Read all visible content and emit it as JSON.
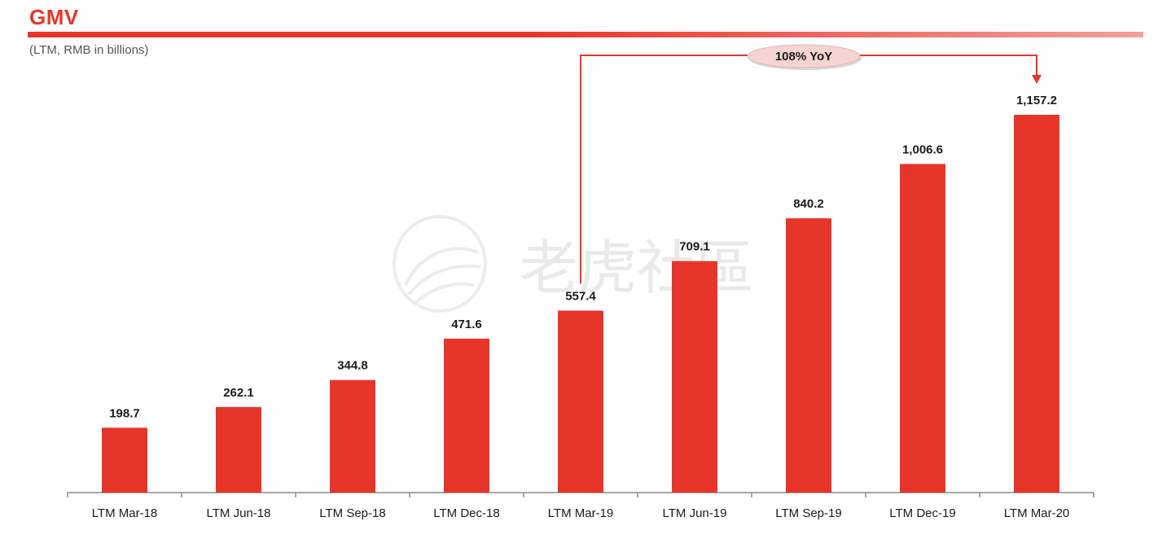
{
  "header": {
    "title": "GMV",
    "subtitle": "(LTM, RMB in billions)"
  },
  "watermark": {
    "text": "老虎社區"
  },
  "callout": {
    "label": "108% YoY"
  },
  "colors": {
    "bar": "#e8352a",
    "accent": "#e8352a",
    "callout_fill": "#f6d4d2"
  },
  "chart_data": {
    "type": "bar",
    "categories": [
      "LTM Mar-18",
      "LTM Jun-18",
      "LTM Sep-18",
      "LTM Dec-18",
      "LTM Mar-19",
      "LTM Jun-19",
      "LTM Sep-19",
      "LTM Dec-19",
      "LTM Mar-20"
    ],
    "values": [
      198.7,
      262.1,
      344.8,
      471.6,
      557.4,
      709.1,
      840.2,
      1006.6,
      1157.2
    ],
    "value_labels": [
      "198.7",
      "262.1",
      "344.8",
      "471.6",
      "557.4",
      "709.1",
      "840.2",
      "1,006.6",
      "1,157.2"
    ],
    "title": "GMV",
    "subtitle": "(LTM, RMB in billions)",
    "xlabel": "",
    "ylabel": "",
    "ylim": [
      0,
      1157.2
    ],
    "grid": false,
    "legend": "none",
    "annotations": [
      {
        "text": "108% YoY",
        "from_category": "LTM Mar-19",
        "to_category": "LTM Mar-20"
      }
    ]
  }
}
